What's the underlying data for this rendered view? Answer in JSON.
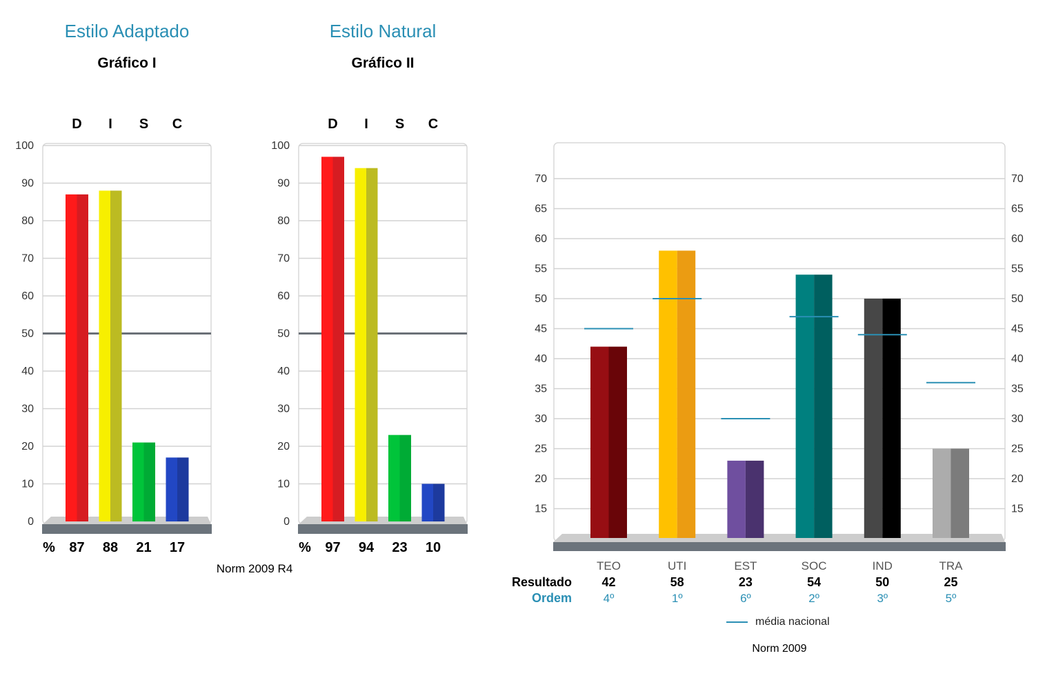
{
  "colors": {
    "accent": "#2a8fb4",
    "grid": "#d2d2d2",
    "midline": "#6a7077",
    "base_top": "#cdcdcd",
    "base_front": "#6b737b",
    "frame": "#d8d8d8",
    "axis_text": "#333333",
    "national_line": "#2a8fb4"
  },
  "chart_data": [
    {
      "type": "bar",
      "style_title": "Estilo Adaptado",
      "title": "Gráfico I",
      "categories": [
        "D",
        "I",
        "S",
        "C"
      ],
      "values": [
        87,
        88,
        21,
        17
      ],
      "value_row_label": "%",
      "bar_colors": [
        [
          "#ff1a1a",
          "#d61c22"
        ],
        [
          "#f7ef00",
          "#bcbb22"
        ],
        [
          "#00c43a",
          "#00ab35"
        ],
        [
          "#2247c4",
          "#1d3a9e"
        ]
      ],
      "ylim": [
        0,
        100
      ],
      "yticks": [
        0,
        10,
        20,
        30,
        40,
        50,
        60,
        70,
        80,
        90,
        100
      ],
      "reference_line": 50,
      "grid": true
    },
    {
      "type": "bar",
      "style_title": "Estilo Natural",
      "title": "Gráfico II",
      "categories": [
        "D",
        "I",
        "S",
        "C"
      ],
      "values": [
        97,
        94,
        23,
        10
      ],
      "value_row_label": "%",
      "bar_colors": [
        [
          "#ff1a1a",
          "#d61c22"
        ],
        [
          "#f7ef00",
          "#bcbb22"
        ],
        [
          "#00c43a",
          "#00ab35"
        ],
        [
          "#2247c4",
          "#1d3a9e"
        ]
      ],
      "ylim": [
        0,
        100
      ],
      "yticks": [
        0,
        10,
        20,
        30,
        40,
        50,
        60,
        70,
        80,
        90,
        100
      ],
      "reference_line": 50,
      "grid": true
    },
    {
      "type": "bar",
      "categories": [
        "TEO",
        "UTI",
        "EST",
        "SOC",
        "IND",
        "TRA"
      ],
      "series": [
        {
          "values": [
            42,
            58,
            23,
            54,
            50,
            25
          ]
        },
        {
          "name": "média nacional",
          "values": [
            45,
            50,
            30,
            47,
            44,
            36
          ]
        }
      ],
      "bar_colors": [
        [
          "#970e13",
          "#690508"
        ],
        [
          "#ffc100",
          "#eb9c12"
        ],
        [
          "#6f4f9f",
          "#4a326e"
        ],
        [
          "#00807f",
          "#005f5f"
        ],
        [
          "#474747",
          "#000000"
        ],
        [
          "#acacac",
          "#7c7c7c"
        ]
      ],
      "result_row_label": "Resultado",
      "order_row_label": "Ordem",
      "order": [
        "4º",
        "1º",
        "6º",
        "2º",
        "3º",
        "5º"
      ],
      "ylim": [
        10,
        72
      ],
      "yticks": [
        15,
        20,
        25,
        30,
        35,
        40,
        45,
        50,
        55,
        60,
        65,
        70
      ],
      "legend": {
        "label": "média nacional",
        "position": "bottom"
      },
      "grid": true
    }
  ],
  "footers": {
    "disc": "Norm 2009 R4",
    "values": "Norm 2009"
  }
}
